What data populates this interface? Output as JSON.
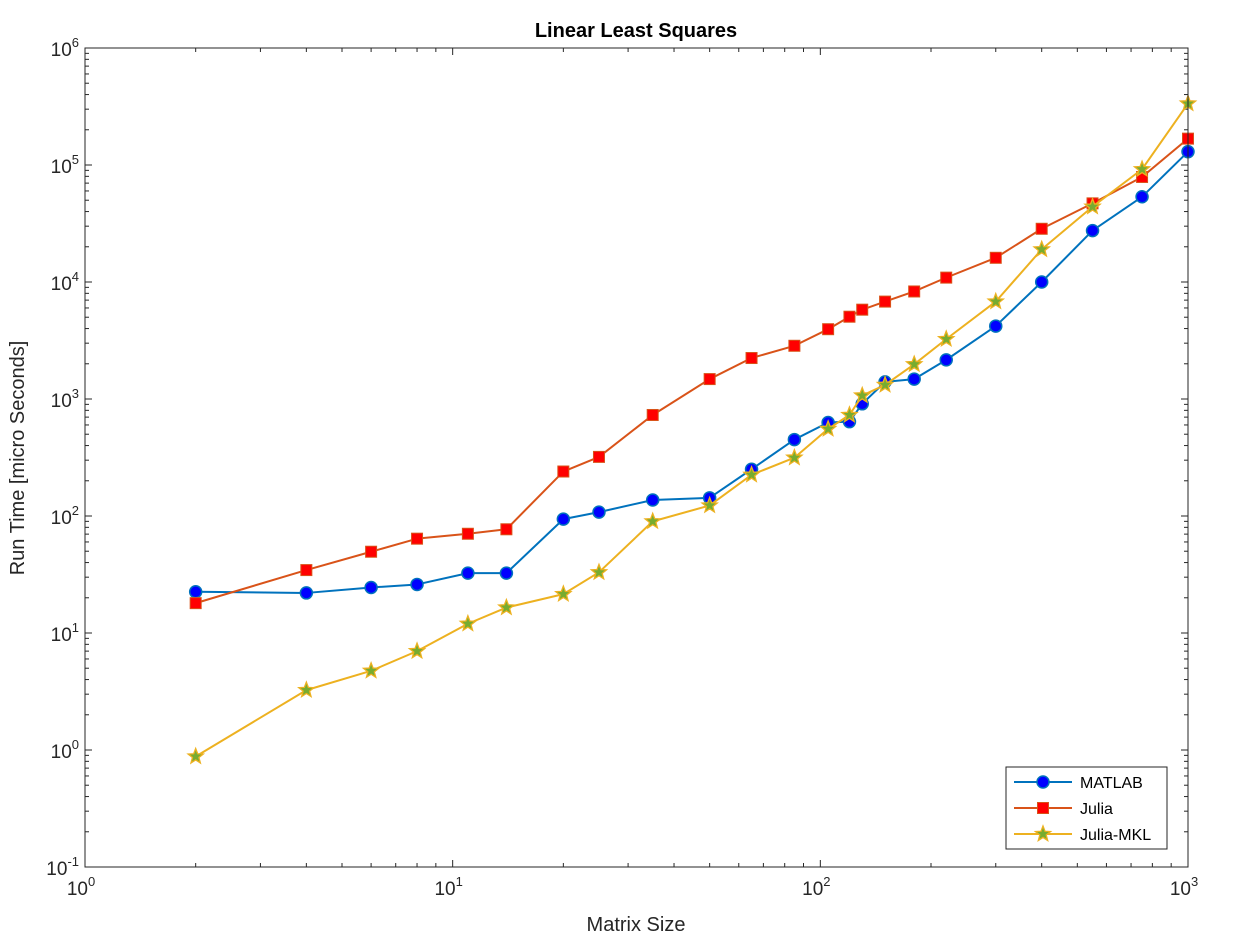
{
  "chart_data": {
    "type": "line",
    "title": "Linear Least Squares",
    "xlabel": "Matrix Size",
    "ylabel": "Run Time  [micro Seconds]",
    "xscale": "log",
    "yscale": "log",
    "xlim": [
      1,
      1000
    ],
    "ylim": [
      0.1,
      1000000
    ],
    "x_ticks": [
      {
        "base": "10",
        "exp": "0",
        "value": 1
      },
      {
        "base": "10",
        "exp": "1",
        "value": 10
      },
      {
        "base": "10",
        "exp": "2",
        "value": 100
      },
      {
        "base": "10",
        "exp": "3",
        "value": 1000
      }
    ],
    "y_ticks": [
      {
        "base": "10",
        "exp": "-1",
        "value": 0.1
      },
      {
        "base": "10",
        "exp": "0",
        "value": 1
      },
      {
        "base": "10",
        "exp": "1",
        "value": 10
      },
      {
        "base": "10",
        "exp": "2",
        "value": 100
      },
      {
        "base": "10",
        "exp": "3",
        "value": 1000
      },
      {
        "base": "10",
        "exp": "4",
        "value": 10000
      },
      {
        "base": "10",
        "exp": "5",
        "value": 100000
      },
      {
        "base": "10",
        "exp": "6",
        "value": 1000000
      }
    ],
    "grid": false,
    "legend_position": "bottom-right",
    "x": [
      2,
      4,
      6,
      8,
      11,
      14,
      20,
      25,
      35,
      50,
      65,
      85,
      105,
      120,
      130,
      150,
      180,
      220,
      300,
      400,
      550,
      750,
      1000
    ],
    "series": [
      {
        "name": "MATLAB",
        "color": "#0072BD",
        "marker": "circle",
        "marker_fill": "#0000FF",
        "values": [
          22.5,
          22,
          24.5,
          26,
          32.5,
          32.5,
          94,
          108,
          137,
          143,
          251,
          450,
          630,
          640,
          910,
          1400,
          1480,
          2160,
          4200,
          10000,
          27500,
          53500,
          130000
        ]
      },
      {
        "name": "Julia",
        "color": "#D95319",
        "marker": "square",
        "marker_fill": "#FF0000",
        "values": [
          18,
          34.5,
          49.5,
          64,
          70.5,
          77,
          240,
          320,
          730,
          1480,
          2240,
          2850,
          3950,
          5050,
          5800,
          6800,
          8300,
          10900,
          16100,
          28500,
          47000,
          79000,
          168000
        ]
      },
      {
        "name": "Julia-MKL",
        "color": "#EDB120",
        "marker": "star",
        "marker_fill": "#77AC30",
        "values": [
          0.88,
          3.25,
          4.75,
          7,
          12,
          16.5,
          21.5,
          33,
          90,
          123,
          225,
          315,
          555,
          730,
          1070,
          1320,
          1980,
          3250,
          6800,
          19000,
          44000,
          92000,
          335000
        ]
      }
    ]
  }
}
